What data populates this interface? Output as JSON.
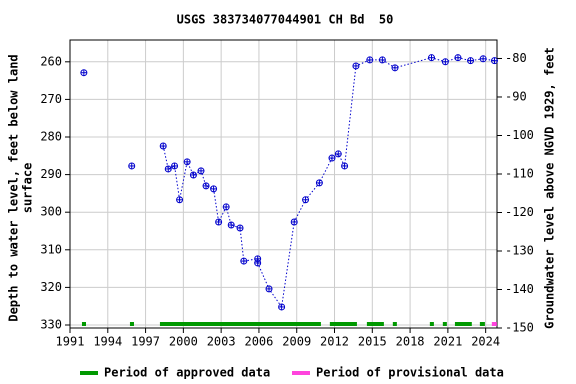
{
  "chart_data": {
    "type": "line",
    "title": "USGS 383734077044901 CH Bd  50",
    "ylabel": [
      "Depth to water level, feet below land",
      "surface"
    ],
    "y2label": "Groundwater level above NGVD 1929, feet",
    "xlim": [
      1991,
      2024.9
    ],
    "xticks": [
      1991,
      1994,
      1997,
      2000,
      2003,
      2006,
      2009,
      2012,
      2015,
      2018,
      2021,
      2024
    ],
    "ylim": [
      254.2,
      330.8
    ],
    "y_inverted": true,
    "yticks": [
      260,
      270,
      280,
      290,
      300,
      310,
      320,
      330
    ],
    "y2lim": [
      -150,
      -75.2
    ],
    "y2ticks": [
      -80,
      -90,
      -100,
      -110,
      -120,
      -130,
      -140,
      -150
    ],
    "grid": true,
    "series": [
      {
        "color": "#0000cc",
        "x": [
          1992.1,
          null,
          1995.9,
          null,
          1998.4,
          1998.8,
          1999.3,
          1999.7,
          2000.3,
          2000.8,
          2001.4,
          2001.8,
          2002.4,
          2002.8,
          2003.4,
          2003.8,
          2004.5,
          2004.8,
          2005.9,
          2005.9,
          2006.8,
          2007.8,
          2008.8,
          2009.7,
          2010.8,
          2011.8,
          2012.3,
          2012.8,
          2013.7,
          2014.8,
          2015.8,
          2016.8,
          2019.7,
          2020.8,
          2021.8,
          2022.8,
          2023.8,
          2024.7
        ],
        "values": [
          262.9,
          null,
          287.7,
          null,
          282.4,
          288.5,
          287.7,
          296.7,
          286.6,
          290.1,
          289.0,
          293.0,
          293.8,
          302.6,
          298.6,
          303.4,
          304.2,
          313.0,
          312.4,
          313.5,
          320.4,
          325.2,
          302.6,
          296.7,
          292.2,
          285.6,
          284.5,
          287.7,
          261.1,
          259.5,
          259.5,
          261.6,
          258.9,
          260.0,
          258.9,
          259.7,
          259.2,
          259.7
        ]
      }
    ],
    "periods": [
      {
        "name": "Period of approved data",
        "color": "#009900",
        "ranges": [
          [
            1991.95,
            1992.27
          ],
          [
            1995.76,
            1996.08
          ],
          [
            1998.14,
            2010.92
          ],
          [
            2011.63,
            2013.78
          ],
          [
            2014.57,
            2015.92
          ],
          [
            2016.63,
            2016.95
          ],
          [
            2019.57,
            2019.89
          ],
          [
            2020.6,
            2020.92
          ],
          [
            2021.56,
            2022.9
          ],
          [
            2023.54,
            2023.94
          ]
        ]
      },
      {
        "name": "Period of provisional data",
        "color": "#ff44dd",
        "ranges": [
          [
            2024.49,
            2024.89
          ]
        ]
      }
    ]
  }
}
